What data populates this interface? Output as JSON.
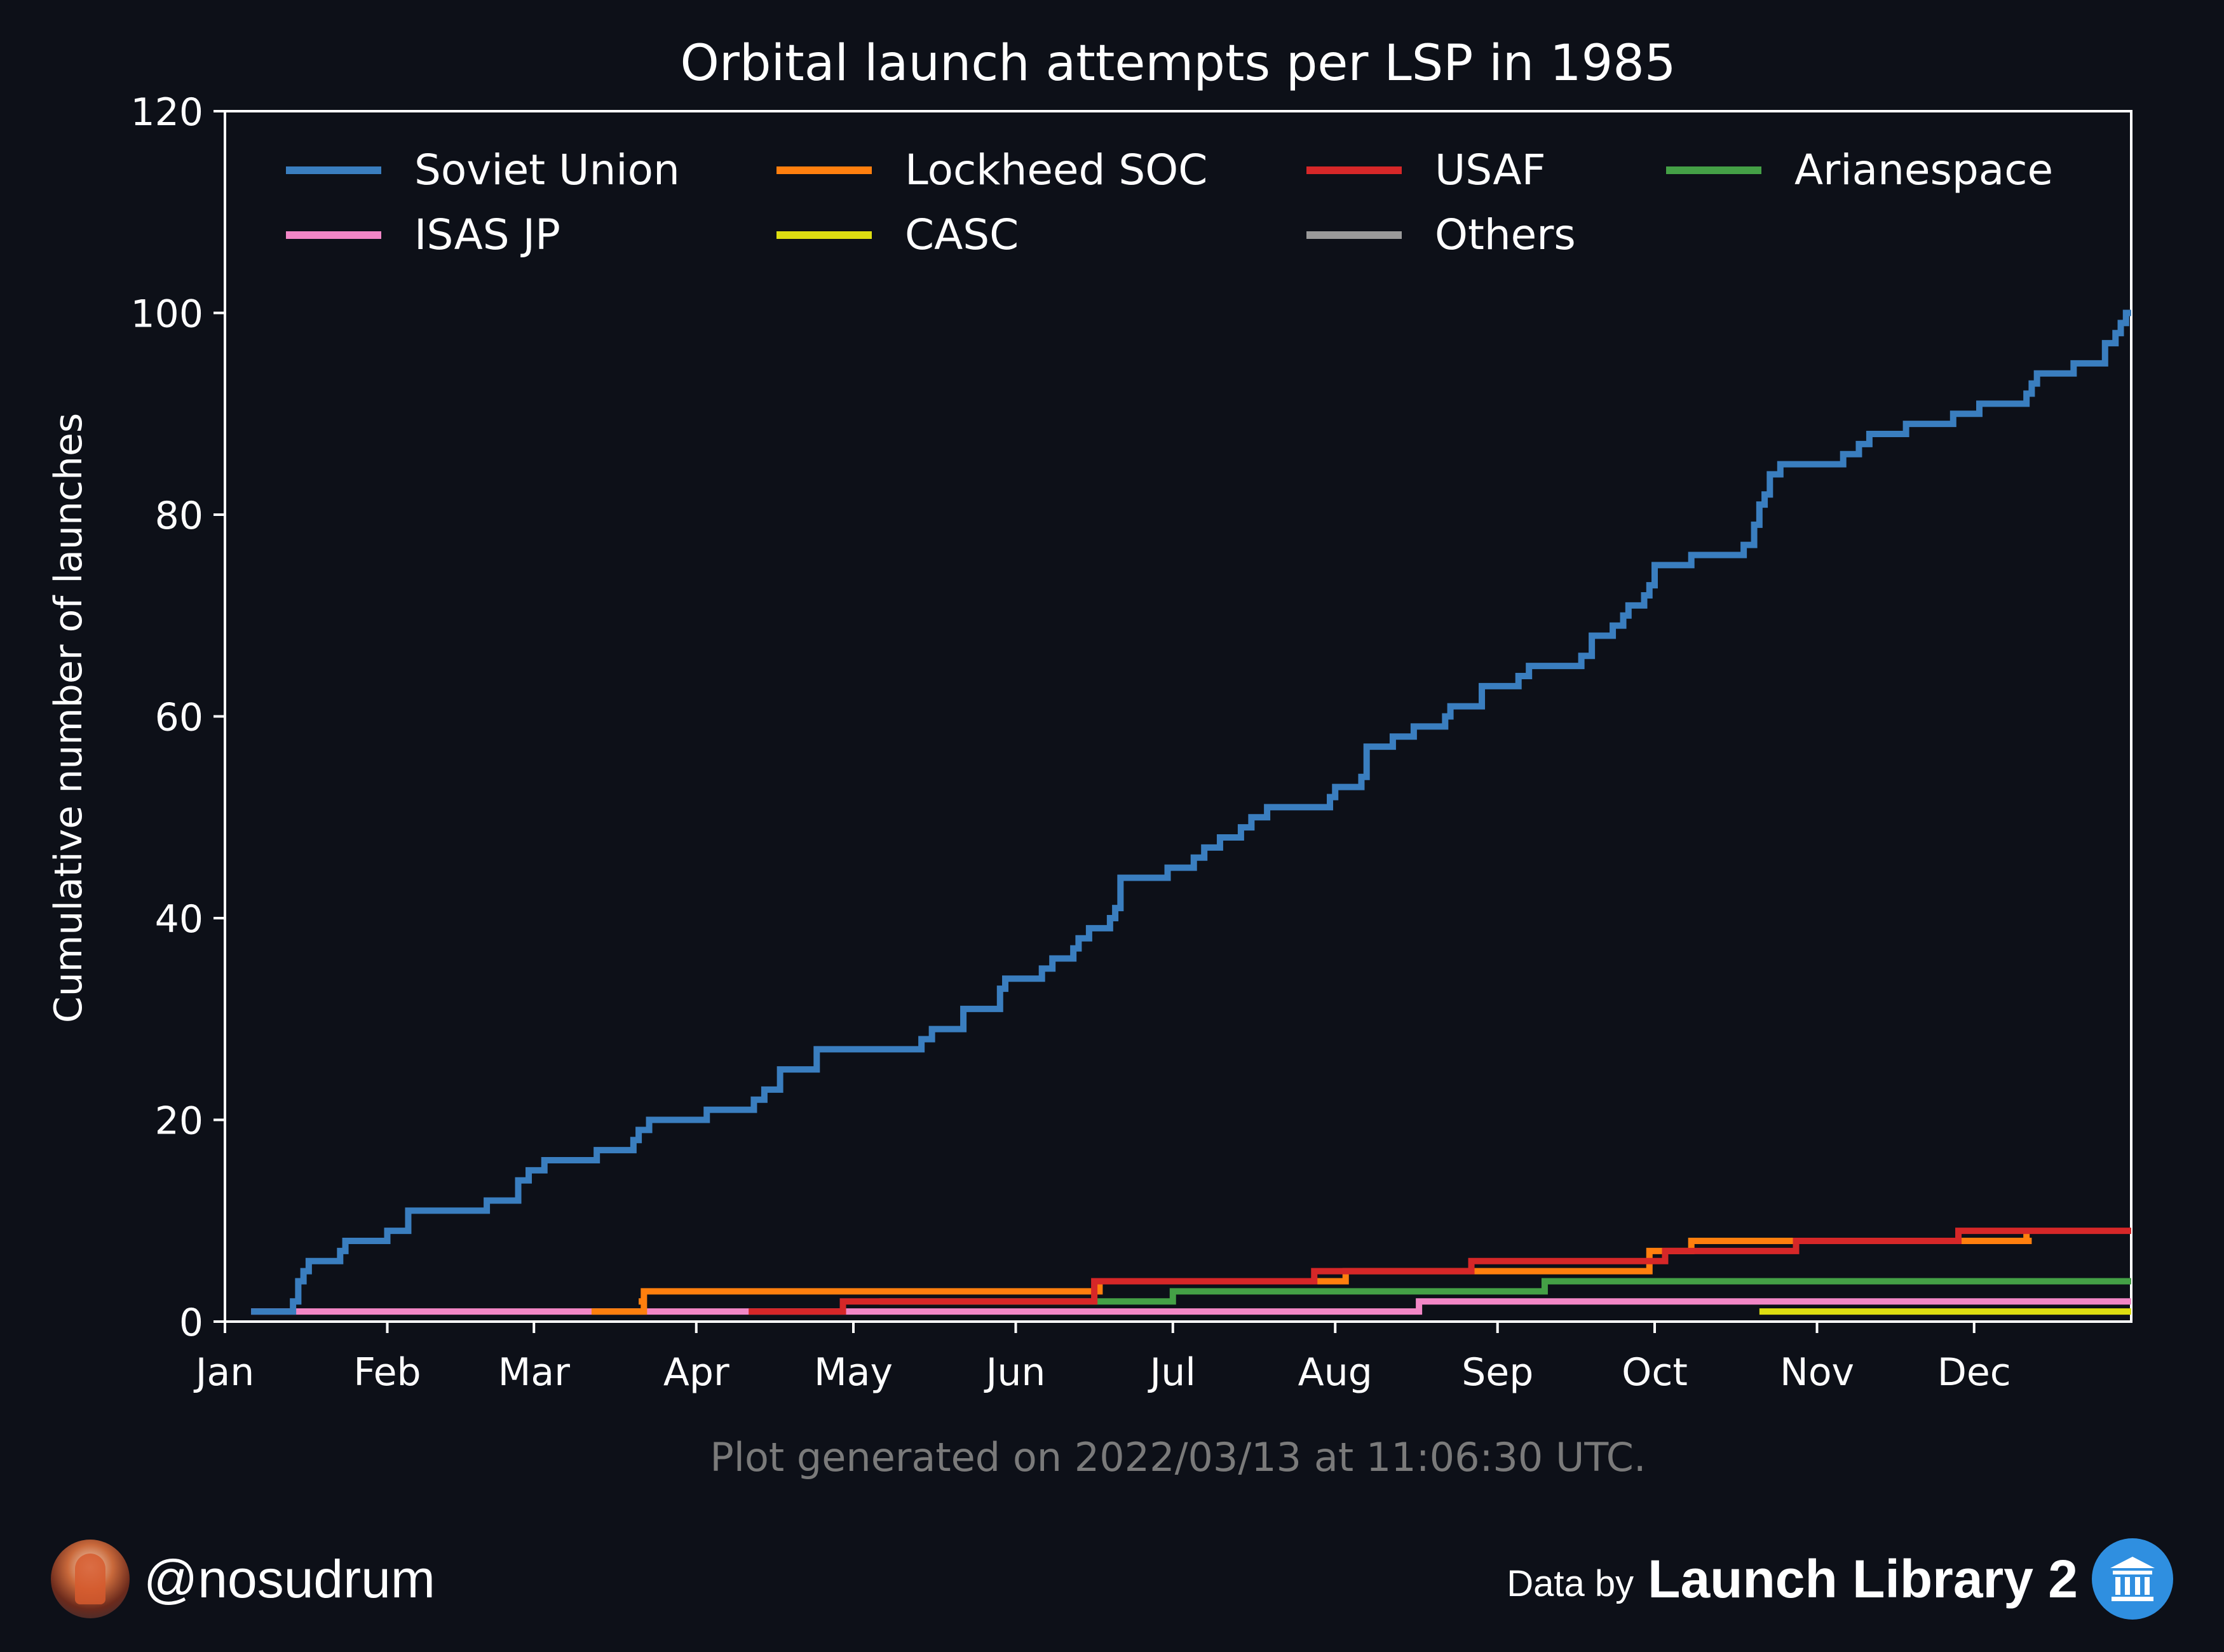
{
  "chart_data": {
    "type": "line",
    "title": "Orbital launch attempts per LSP in 1985",
    "ylabel": "Cumulative number of launches",
    "xlabel": "",
    "x_unit": "days since Jan 1, 1985",
    "xlim": [
      0,
      364
    ],
    "ylim": [
      0,
      120
    ],
    "yticks": [
      0,
      20,
      40,
      60,
      80,
      100,
      120
    ],
    "xticks": [
      {
        "label": "Jan",
        "day": 0
      },
      {
        "label": "Feb",
        "day": 31
      },
      {
        "label": "Mar",
        "day": 59
      },
      {
        "label": "Apr",
        "day": 90
      },
      {
        "label": "May",
        "day": 120
      },
      {
        "label": "Jun",
        "day": 151
      },
      {
        "label": "Jul",
        "day": 181
      },
      {
        "label": "Aug",
        "day": 212
      },
      {
        "label": "Sep",
        "day": 243
      },
      {
        "label": "Oct",
        "day": 273
      },
      {
        "label": "Nov",
        "day": 304
      },
      {
        "label": "Dec",
        "day": 334
      }
    ],
    "grid": false,
    "legend_position": "top",
    "series": [
      {
        "name": "Soviet Union",
        "color": "#3a7ebf",
        "points": [
          [
            5,
            1
          ],
          [
            13,
            2
          ],
          [
            14,
            4
          ],
          [
            15,
            5
          ],
          [
            16,
            6
          ],
          [
            22,
            7
          ],
          [
            23,
            8
          ],
          [
            31,
            9
          ],
          [
            35,
            11
          ],
          [
            50,
            12
          ],
          [
            56,
            14
          ],
          [
            58,
            15
          ],
          [
            61,
            16
          ],
          [
            71,
            17
          ],
          [
            78,
            18
          ],
          [
            79,
            19
          ],
          [
            81,
            20
          ],
          [
            92,
            21
          ],
          [
            101,
            22
          ],
          [
            103,
            23
          ],
          [
            106,
            25
          ],
          [
            113,
            27
          ],
          [
            133,
            28
          ],
          [
            135,
            29
          ],
          [
            141,
            31
          ],
          [
            148,
            33
          ],
          [
            149,
            34
          ],
          [
            156,
            35
          ],
          [
            158,
            36
          ],
          [
            162,
            37
          ],
          [
            163,
            38
          ],
          [
            165,
            39
          ],
          [
            169,
            40
          ],
          [
            170,
            41
          ],
          [
            171,
            44
          ],
          [
            180,
            45
          ],
          [
            185,
            46
          ],
          [
            187,
            47
          ],
          [
            190,
            48
          ],
          [
            194,
            49
          ],
          [
            196,
            50
          ],
          [
            199,
            51
          ],
          [
            211,
            52
          ],
          [
            212,
            53
          ],
          [
            217,
            54
          ],
          [
            218,
            57
          ],
          [
            223,
            58
          ],
          [
            227,
            59
          ],
          [
            233,
            60
          ],
          [
            234,
            61
          ],
          [
            240,
            63
          ],
          [
            247,
            64
          ],
          [
            249,
            65
          ],
          [
            259,
            66
          ],
          [
            261,
            68
          ],
          [
            265,
            69
          ],
          [
            267,
            70
          ],
          [
            268,
            71
          ],
          [
            271,
            72
          ],
          [
            272,
            73
          ],
          [
            273,
            75
          ],
          [
            280,
            76
          ],
          [
            290,
            77
          ],
          [
            292,
            79
          ],
          [
            293,
            81
          ],
          [
            294,
            82
          ],
          [
            295,
            84
          ],
          [
            297,
            85
          ],
          [
            309,
            86
          ],
          [
            312,
            87
          ],
          [
            314,
            88
          ],
          [
            321,
            89
          ],
          [
            330,
            90
          ],
          [
            335,
            91
          ],
          [
            344,
            92
          ],
          [
            345,
            93
          ],
          [
            346,
            94
          ],
          [
            353,
            95
          ],
          [
            359,
            97
          ],
          [
            361,
            98
          ],
          [
            362,
            99
          ],
          [
            363,
            100
          ],
          [
            364,
            100
          ]
        ]
      },
      {
        "name": "Lockheed SOC",
        "color": "#ff7f0e",
        "points": [
          [
            70,
            1
          ],
          [
            80,
            2
          ],
          [
            79,
            2
          ],
          [
            80,
            3
          ],
          [
            167,
            4
          ],
          [
            214,
            5
          ],
          [
            272,
            7
          ],
          [
            280,
            8
          ],
          [
            344,
            9
          ],
          [
            344,
            8
          ],
          [
            345,
            8
          ]
        ]
      },
      {
        "name": "USAF",
        "color": "#d62728",
        "points": [
          [
            100,
            1
          ],
          [
            118,
            2
          ],
          [
            166,
            4
          ],
          [
            208,
            5
          ],
          [
            238,
            6
          ],
          [
            275,
            7
          ],
          [
            300,
            8
          ],
          [
            320,
            8
          ],
          [
            331,
            9
          ],
          [
            364,
            9
          ]
        ]
      },
      {
        "name": "Arianespace",
        "color": "#44a046",
        "points": [
          [
            125,
            2
          ],
          [
            181,
            3
          ],
          [
            252,
            4
          ],
          [
            364,
            4
          ]
        ]
      },
      {
        "name": "ISAS JP",
        "color": "#f286c6",
        "points": [
          [
            5,
            1
          ],
          [
            228,
            2
          ],
          [
            364,
            2
          ]
        ]
      },
      {
        "name": "CASC",
        "color": "#dddd11",
        "points": [
          [
            293,
            1
          ],
          [
            364,
            1
          ]
        ]
      },
      {
        "name": "Others",
        "color": "#9a9a9a",
        "points": []
      }
    ]
  },
  "footer": {
    "generated": "Plot generated on 2022/03/13 at 11:06:30 UTC.",
    "handle": "@nosudrum",
    "data_by": "Data by",
    "brand": "Launch Library 2",
    "brand_icon": "museum-icon",
    "avatar_icon": "astronaut-avatar-icon"
  }
}
